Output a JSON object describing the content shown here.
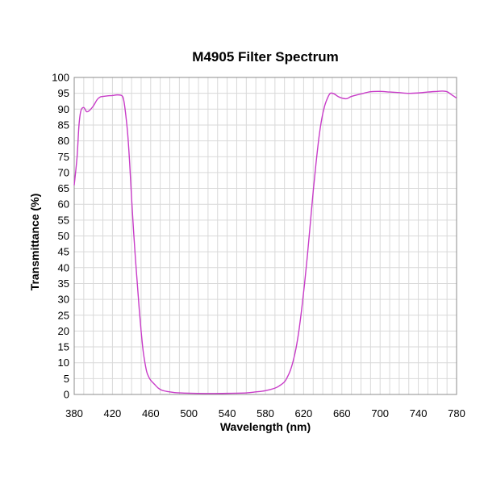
{
  "chart_data": {
    "type": "line",
    "title": "M4905 Filter Spectrum",
    "xlabel": "Wavelength (nm)",
    "ylabel": "Transmittance (%)",
    "xlim": [
      380,
      780
    ],
    "ylim": [
      0,
      100
    ],
    "x_ticks": [
      "380",
      "420",
      "460",
      "500",
      "540",
      "580",
      "620",
      "660",
      "700",
      "740",
      "780"
    ],
    "y_ticks": [
      "0",
      "5",
      "10",
      "15",
      "20",
      "25",
      "30",
      "35",
      "40",
      "45",
      "50",
      "55",
      "60",
      "65",
      "70",
      "75",
      "80",
      "85",
      "90",
      "95",
      "100"
    ],
    "grid": true,
    "line_color": "#c83cc8",
    "series": [
      {
        "x": [
          380,
          383,
          385,
          387,
          390,
          393,
          396,
          400,
          404,
          407,
          410,
          415,
          420,
          425,
          430,
          432,
          434,
          436,
          438,
          440,
          442,
          444,
          446,
          448,
          450,
          452,
          454,
          456,
          458,
          460,
          464,
          468,
          472,
          478,
          485,
          500,
          520,
          540,
          560,
          570,
          580,
          590,
          595,
          600,
          603,
          606,
          609,
          612,
          615,
          618,
          621,
          624,
          627,
          630,
          633,
          636,
          639,
          642,
          645,
          648,
          652,
          656,
          660,
          665,
          670,
          680,
          690,
          700,
          710,
          720,
          730,
          740,
          750,
          760,
          765,
          770,
          775,
          780
        ],
        "y": [
          66,
          75,
          85,
          89.5,
          90.5,
          89.2,
          89.6,
          91,
          93,
          93.8,
          94,
          94.2,
          94.3,
          94.5,
          94.2,
          92.5,
          88,
          82,
          73,
          62,
          52,
          43,
          35,
          27,
          20,
          14,
          10,
          7,
          5.5,
          4.5,
          3.2,
          2,
          1.3,
          0.9,
          0.6,
          0.4,
          0.3,
          0.35,
          0.5,
          0.8,
          1.2,
          2,
          2.8,
          4,
          5.5,
          7.5,
          10.5,
          14.5,
          20,
          27,
          35,
          44,
          54,
          64,
          73,
          81,
          87,
          91,
          93.5,
          95,
          94.8,
          94,
          93.5,
          93.3,
          94,
          94.8,
          95.5,
          95.6,
          95.4,
          95.2,
          95,
          95.1,
          95.4,
          95.6,
          95.7,
          95.5,
          94.5,
          93.5
        ]
      }
    ]
  }
}
